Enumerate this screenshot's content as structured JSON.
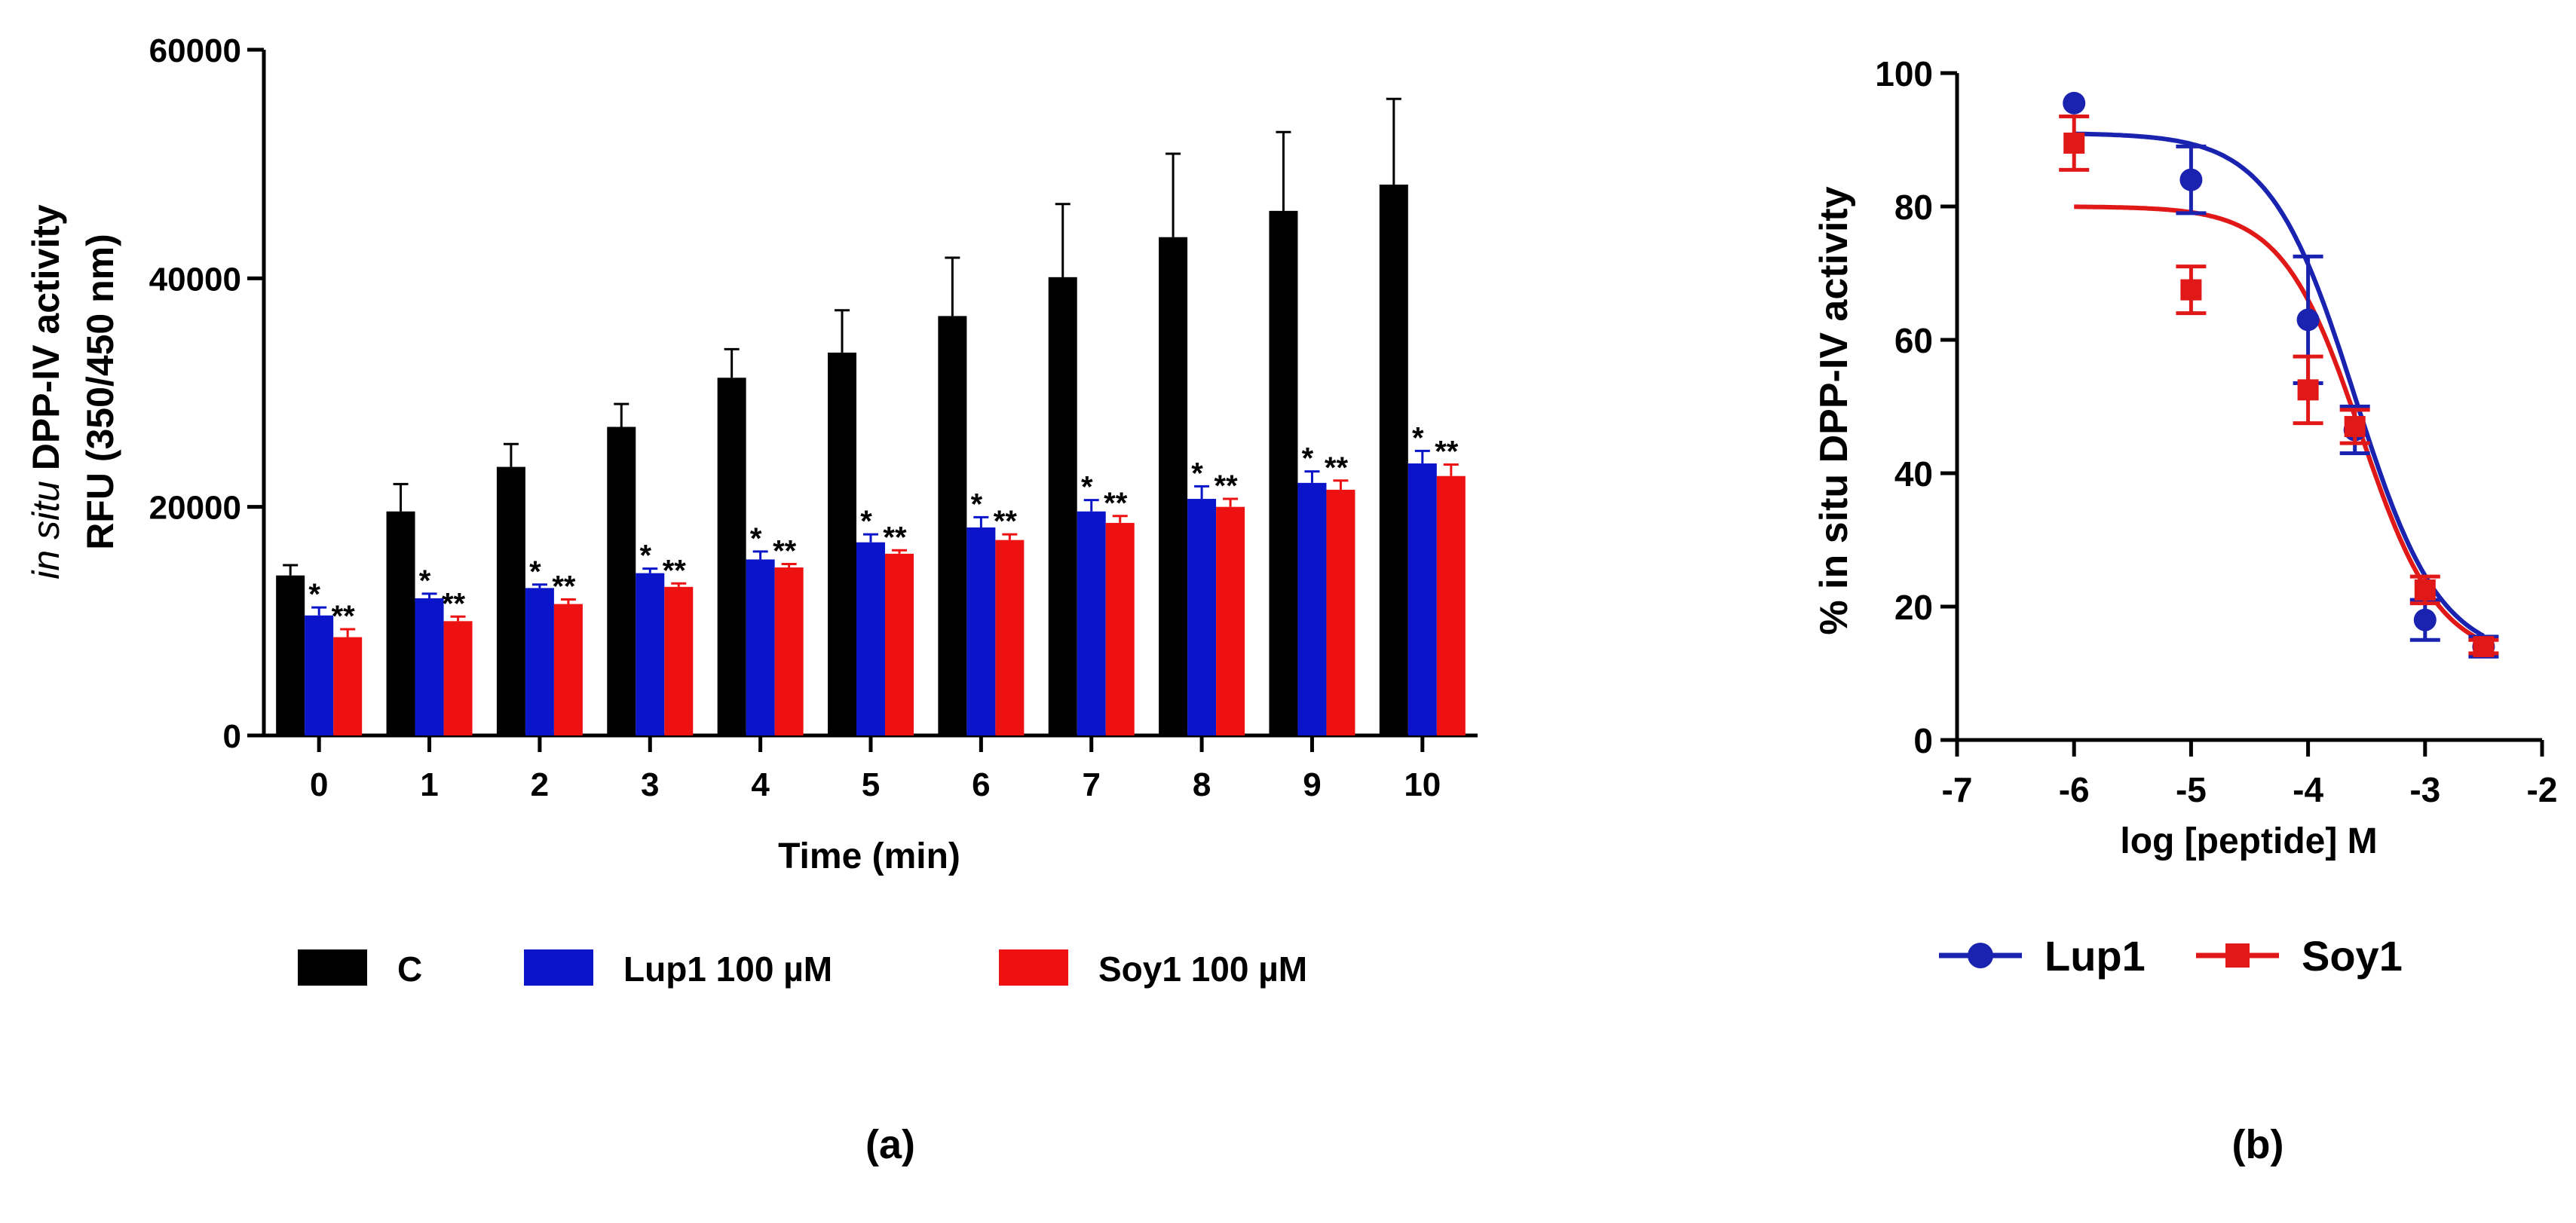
{
  "chart_data": [
    {
      "type": "bar",
      "panel_label": "(a)",
      "ylabel_italic": "in situ",
      "ylabel_rest": "DPP-IV activity",
      "ylabel_line2": "RFU (350/450 nm)",
      "xlabel": "Time (min)",
      "ylim": [
        0,
        60000
      ],
      "yticks": [
        "0",
        "20000",
        "40000",
        "60000"
      ],
      "ytick_values": [
        0,
        20000,
        40000,
        60000
      ],
      "categories": [
        "0",
        "1",
        "2",
        "3",
        "4",
        "5",
        "6",
        "7",
        "8",
        "9",
        "10"
      ],
      "series": [
        {
          "name": "C",
          "color": "#000000",
          "values": [
            14000,
            19600,
            23500,
            27000,
            31300,
            33500,
            36700,
            40100,
            43600,
            45900,
            48200
          ],
          "errors": [
            900,
            2400,
            2000,
            2000,
            2500,
            3700,
            5100,
            6400,
            7300,
            6900,
            7500
          ],
          "markers": [
            "",
            "",
            "",
            "",
            "",
            "",
            "",
            "",
            "",
            "",
            ""
          ]
        },
        {
          "name": "Lup1 100 µM",
          "color": "#0a14c8",
          "values": [
            10500,
            12000,
            12900,
            14200,
            15400,
            16900,
            18200,
            19600,
            20700,
            22100,
            23800
          ],
          "errors": [
            700,
            400,
            300,
            400,
            700,
            700,
            900,
            1000,
            1100,
            1000,
            1100
          ],
          "markers": [
            "*",
            "*",
            "*",
            "*",
            "*",
            "*",
            "*",
            "*",
            "*",
            "*",
            "*"
          ]
        },
        {
          "name": "Soy1 100 µM",
          "color": "#ee1111",
          "values": [
            8600,
            10000,
            11500,
            13000,
            14700,
            15900,
            17100,
            18600,
            20000,
            21500,
            22700
          ],
          "errors": [
            700,
            400,
            400,
            300,
            300,
            300,
            500,
            600,
            700,
            800,
            1000
          ],
          "markers": [
            "**",
            "**",
            "**",
            "**",
            "**",
            "**",
            "**",
            "**",
            "**",
            "**",
            "**"
          ]
        }
      ]
    },
    {
      "type": "scatter",
      "panel_label": "(b)",
      "ylabel": "% in situ DPP-IV activity",
      "xlabel": "log [peptide] M",
      "xlim": [
        -7,
        -2
      ],
      "ylim": [
        0,
        100
      ],
      "xticks": [
        "-7",
        "-6",
        "-5",
        "-4",
        "-3",
        "-2"
      ],
      "xtick_values": [
        -7,
        -6,
        -5,
        -4,
        -3,
        -2
      ],
      "yticks": [
        "0",
        "20",
        "40",
        "60",
        "80",
        "100"
      ],
      "ytick_values": [
        0,
        20,
        40,
        60,
        80,
        100
      ],
      "series": [
        {
          "name": "Lup1",
          "color": "#1a22b0",
          "marker": "circle",
          "x": [
            -6,
            -5,
            -4,
            -3.6,
            -3,
            -2.5
          ],
          "y": [
            95.5,
            84,
            63,
            46.5,
            18,
            14
          ],
          "errors": [
            0,
            5,
            9.5,
            3.5,
            3,
            1.5
          ],
          "fit": {
            "top": 91,
            "bottom": 12,
            "logIC50": -3.6,
            "hill": -1.2
          }
        },
        {
          "name": "Soy1",
          "color": "#e01818",
          "marker": "square",
          "x": [
            -6,
            -5,
            -4,
            -3.6,
            -3,
            -2.5
          ],
          "y": [
            89.5,
            67.5,
            52.5,
            47,
            22.5,
            14
          ],
          "errors": [
            4,
            3.5,
            5,
            2.5,
            2,
            1
          ],
          "fit": {
            "top": 80,
            "bottom": 12,
            "logIC50": -3.55,
            "hill": -1.3
          }
        }
      ]
    }
  ]
}
